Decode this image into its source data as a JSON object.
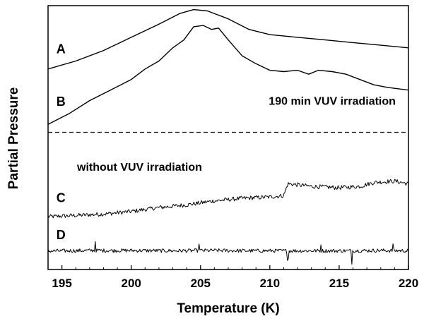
{
  "chart_data": {
    "type": "line",
    "title": "",
    "xlabel": "Temperature (K)",
    "ylabel": "Partial Pressure",
    "xlim": [
      194,
      220
    ],
    "ylim": [
      0,
      1
    ],
    "x_ticks": [
      195,
      200,
      205,
      210,
      215,
      220
    ],
    "y_ticks": [],
    "grid": false,
    "separator_y": 0.52,
    "annotations": [
      {
        "text": "190 min VUV irradiation",
        "x": 214.5,
        "y": 0.625
      },
      {
        "text": "without VUV irradiation",
        "x": 200.6,
        "y": 0.375
      }
    ],
    "series": [
      {
        "name": "A",
        "label_at": [
          194.6,
          0.82
        ],
        "points": [
          [
            194,
            0.76
          ],
          [
            196,
            0.79
          ],
          [
            198,
            0.83
          ],
          [
            200,
            0.88
          ],
          [
            202,
            0.93
          ],
          [
            203.5,
            0.97
          ],
          [
            204.5,
            0.985
          ],
          [
            205.5,
            0.98
          ],
          [
            207,
            0.95
          ],
          [
            208.5,
            0.91
          ],
          [
            210,
            0.89
          ],
          [
            212,
            0.88
          ],
          [
            214,
            0.87
          ],
          [
            216,
            0.86
          ],
          [
            218,
            0.85
          ],
          [
            220,
            0.84
          ]
        ]
      },
      {
        "name": "B",
        "label_at": [
          194.6,
          0.62
        ],
        "points": [
          [
            194,
            0.55
          ],
          [
            195.5,
            0.59
          ],
          [
            197,
            0.64
          ],
          [
            198.5,
            0.68
          ],
          [
            200,
            0.72
          ],
          [
            201,
            0.76
          ],
          [
            202,
            0.79
          ],
          [
            203,
            0.84
          ],
          [
            203.8,
            0.87
          ],
          [
            204.5,
            0.92
          ],
          [
            205.2,
            0.925
          ],
          [
            205.8,
            0.91
          ],
          [
            206.3,
            0.915
          ],
          [
            207,
            0.87
          ],
          [
            208,
            0.81
          ],
          [
            209,
            0.78
          ],
          [
            210,
            0.755
          ],
          [
            211,
            0.75
          ],
          [
            212,
            0.755
          ],
          [
            212.8,
            0.74
          ],
          [
            213.5,
            0.755
          ],
          [
            214.5,
            0.75
          ],
          [
            215.5,
            0.74
          ],
          [
            216.5,
            0.72
          ],
          [
            217.5,
            0.7
          ],
          [
            218.5,
            0.69
          ],
          [
            220,
            0.68
          ]
        ]
      },
      {
        "name": "C",
        "label_at": [
          194.6,
          0.255
        ],
        "points": [
          [
            194,
            0.2
          ],
          [
            196,
            0.205
          ],
          [
            198,
            0.21
          ],
          [
            200,
            0.22
          ],
          [
            202,
            0.235
          ],
          [
            204,
            0.245
          ],
          [
            206,
            0.26
          ],
          [
            208,
            0.27
          ],
          [
            210,
            0.275
          ],
          [
            211,
            0.28
          ],
          [
            211.3,
            0.325
          ],
          [
            213,
            0.315
          ],
          [
            215,
            0.31
          ],
          [
            216.5,
            0.315
          ],
          [
            217.5,
            0.33
          ],
          [
            219,
            0.335
          ],
          [
            220,
            0.325
          ]
        ],
        "noise": 0.008
      },
      {
        "name": "D",
        "label_at": [
          194.6,
          0.115
        ],
        "points": [
          [
            194,
            0.07
          ],
          [
            197,
            0.072
          ],
          [
            200,
            0.072
          ],
          [
            203,
            0.071
          ],
          [
            206,
            0.072
          ],
          [
            209,
            0.071
          ],
          [
            212,
            0.071
          ],
          [
            215,
            0.071
          ],
          [
            218,
            0.072
          ],
          [
            220,
            0.071
          ]
        ],
        "noise": 0.007,
        "spikes": [
          [
            197.4,
            0.035
          ],
          [
            204.9,
            0.03
          ],
          [
            211.3,
            -0.03
          ],
          [
            215.9,
            -0.045
          ],
          [
            213.7,
            0.022
          ],
          [
            218.9,
            0.025
          ]
        ]
      }
    ]
  }
}
